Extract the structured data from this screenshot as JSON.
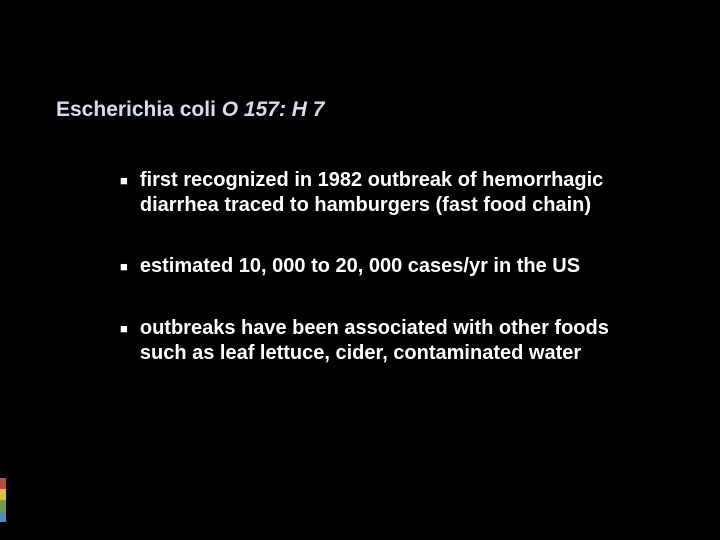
{
  "slide": {
    "background_color": "#000000",
    "title_color": "#d5ddea",
    "body_text_color": "#ffffff",
    "bullet_color": "#ffffff",
    "accent_colors": [
      "#b3543a",
      "#d9c249",
      "#6f9a50",
      "#5b8ab0"
    ],
    "title_part1": "Escherichia coli ",
    "title_part2": "O 157: H 7",
    "title_fontsize": 21,
    "body_fontsize": 20,
    "bullets": [
      "first recognized in 1982 outbreak of hemorrhagic diarrhea traced to hamburgers (fast food chain)",
      "estimated 10, 000 to 20, 000 cases/yr in the US",
      "outbreaks have been associated with other foods such as leaf lettuce, cider, contaminated water"
    ]
  }
}
